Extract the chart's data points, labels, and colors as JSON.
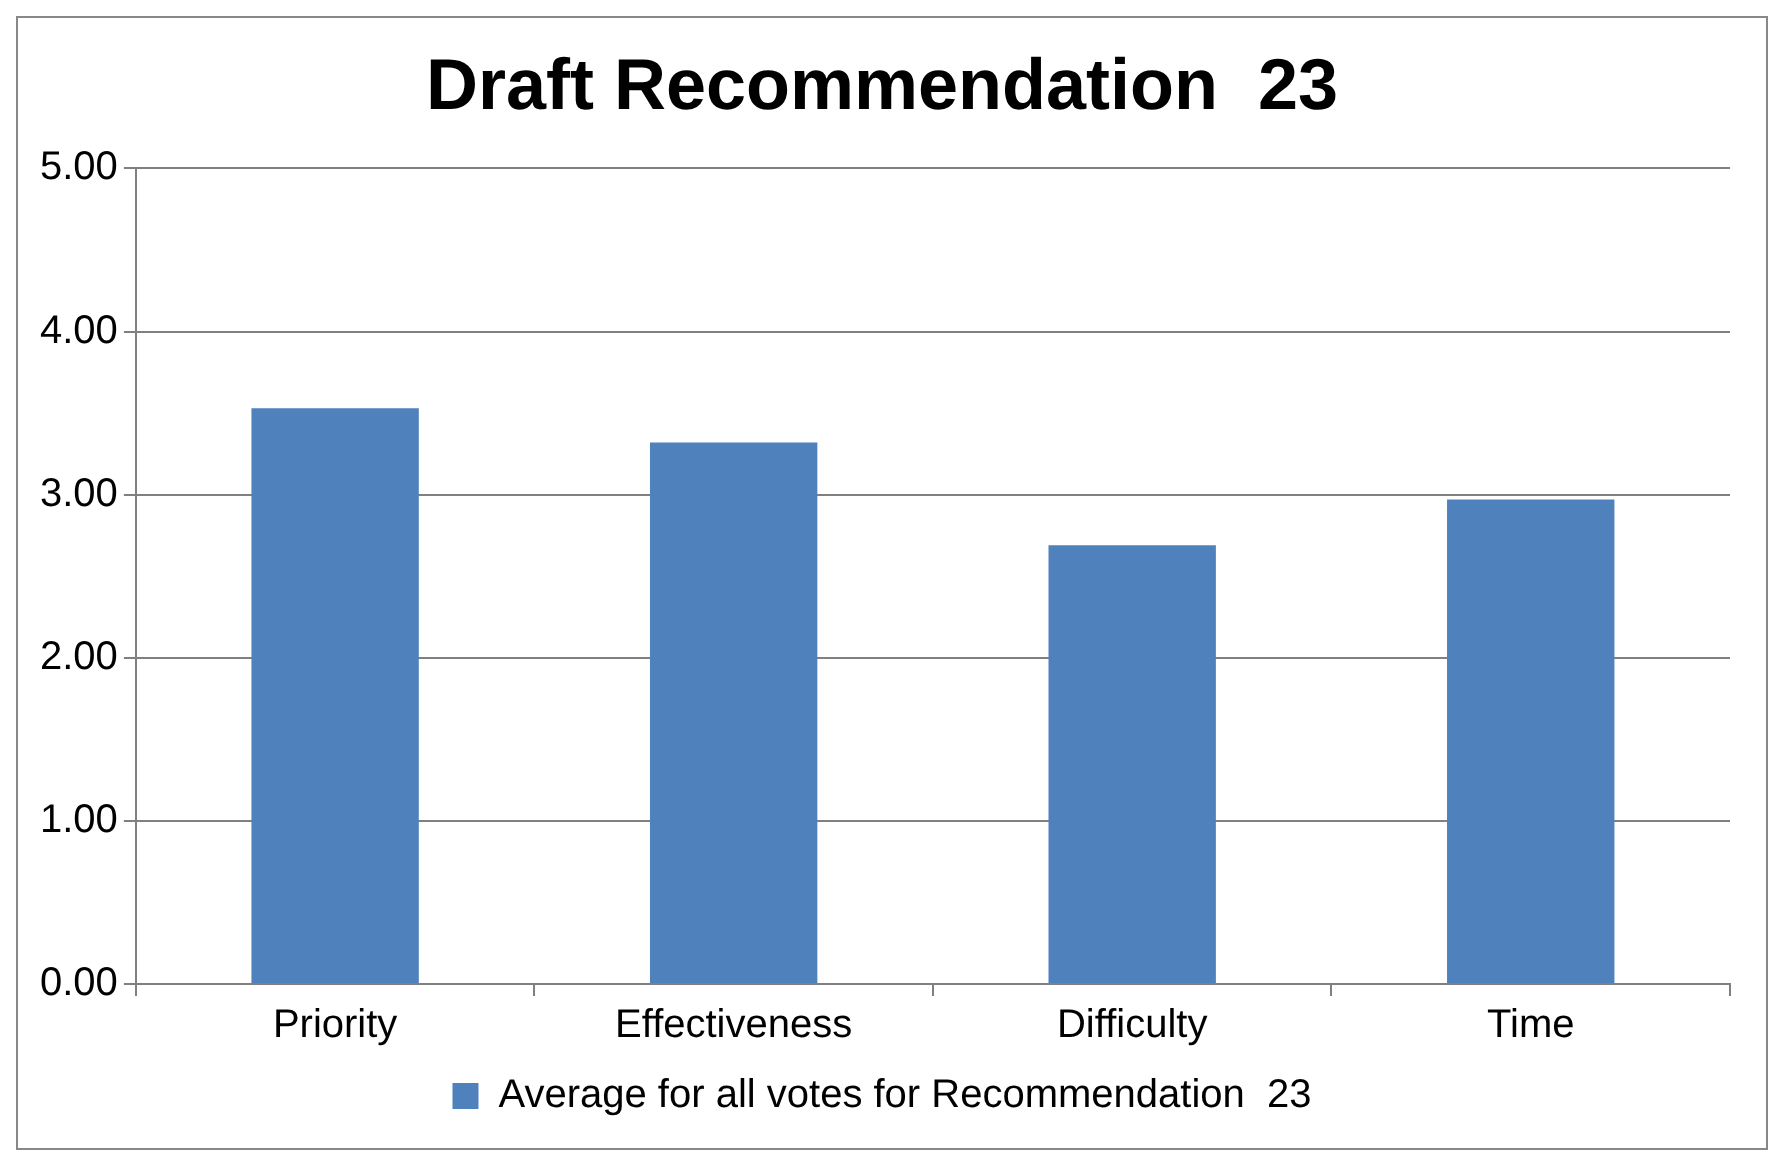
{
  "chart_data": {
    "type": "bar",
    "title": "Draft Recommendation  23",
    "categories": [
      "Priority",
      "Effectiveness",
      "Difficulty",
      "Time"
    ],
    "series": [
      {
        "name": "Average for all votes for Recommendation  23",
        "color": "#4f81bd",
        "values": [
          3.53,
          3.32,
          2.69,
          2.97
        ]
      }
    ],
    "ylim": [
      0,
      5
    ],
    "yticks": [
      {
        "value": 0,
        "label": "0.00"
      },
      {
        "value": 1,
        "label": "1.00"
      },
      {
        "value": 2,
        "label": "2.00"
      },
      {
        "value": 3,
        "label": "3.00"
      },
      {
        "value": 4,
        "label": "4.00"
      },
      {
        "value": 5,
        "label": "5.00"
      }
    ],
    "grid": "y",
    "legend": "bottom"
  }
}
